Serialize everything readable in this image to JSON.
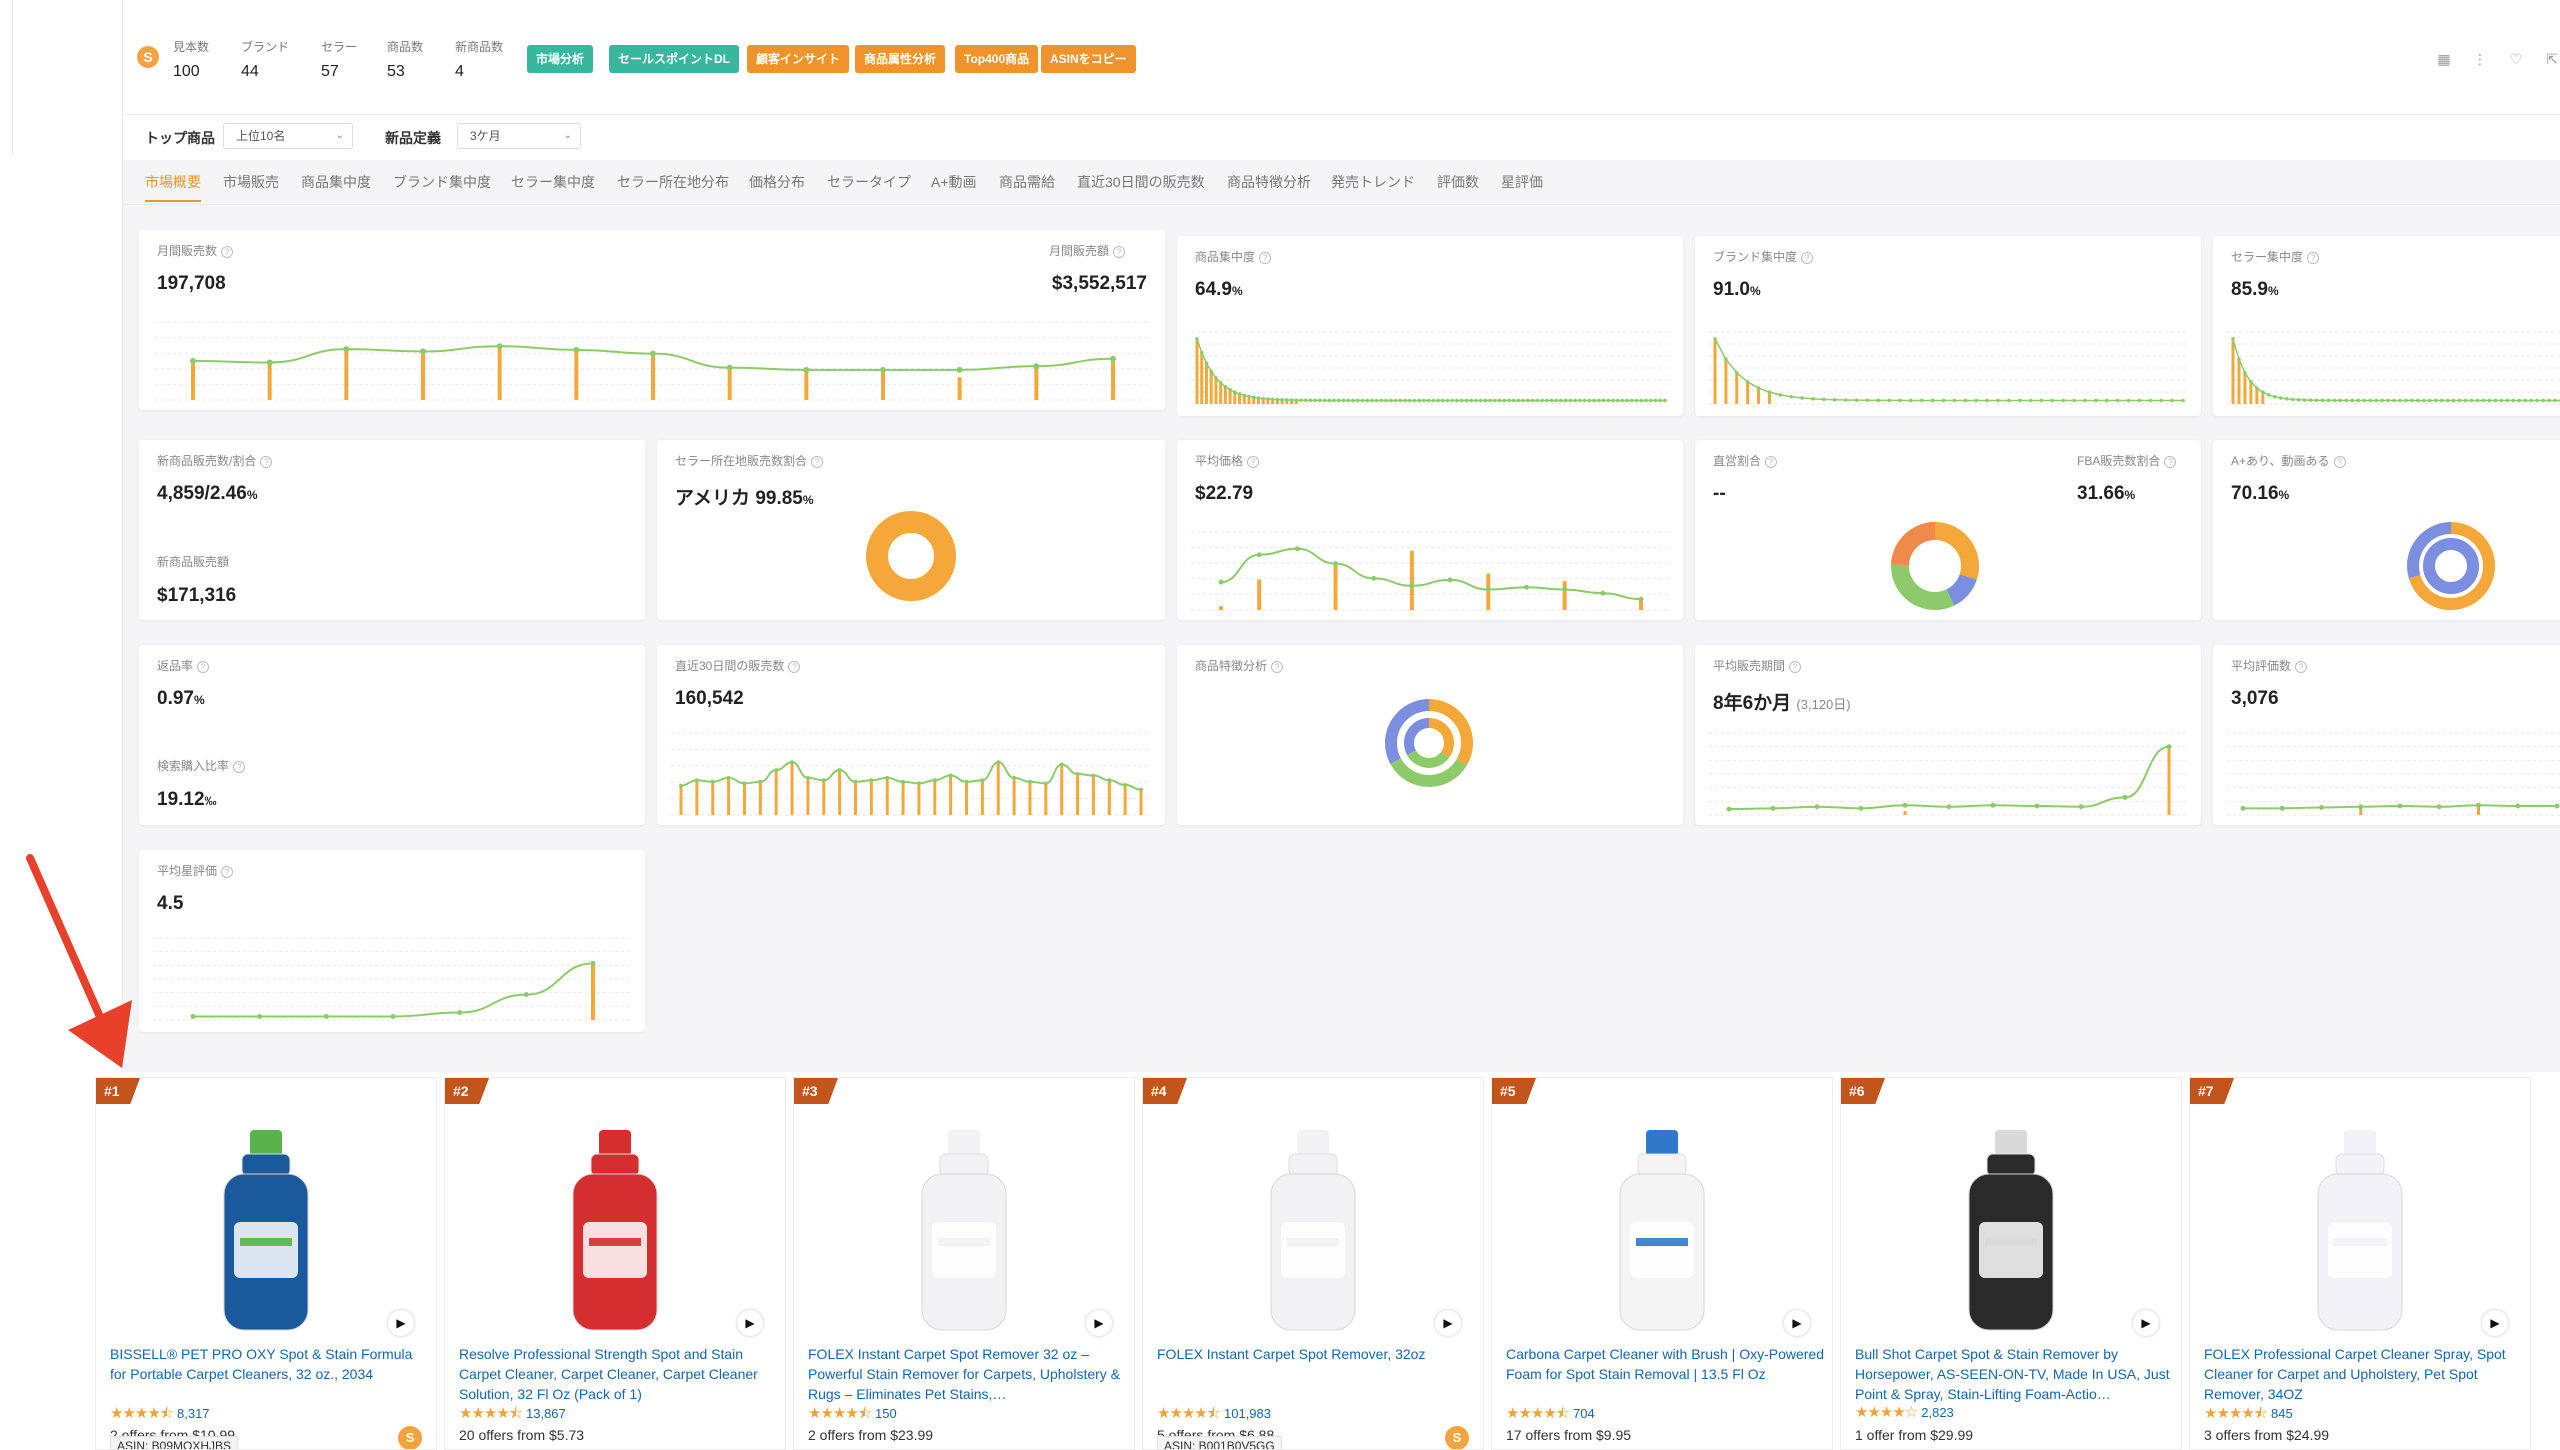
{
  "toolbar": {
    "logo_glyph": "S",
    "stats": [
      {
        "label": "見本数",
        "value": "100"
      },
      {
        "label": "ブランド",
        "value": "44"
      },
      {
        "label": "セラー",
        "value": "57"
      },
      {
        "label": "商品数",
        "value": "53"
      },
      {
        "label": "新商品数",
        "value": "4"
      }
    ],
    "chips": [
      "市場分析",
      "セールスポイントDL",
      "顧客インサイト",
      "商品属性分析",
      "Top400商品",
      "ASINをコピー"
    ],
    "icons": [
      "grid-icon",
      "more-icon",
      "heart-icon",
      "export-icon"
    ],
    "icon_glyphs": [
      "▦",
      "⋮",
      "♡",
      "⇱"
    ]
  },
  "filters": {
    "top_label": "トップ商品",
    "top_value": "上位10名",
    "new_label": "新品定義",
    "new_value": "3ケ月",
    "chevron": "⌄"
  },
  "tabs": [
    "市場概要",
    "市場販売",
    "商品集中度",
    "ブランド集中度",
    "セラー集中度",
    "セラー所在地分布",
    "価格分布",
    "セラータイプ",
    "A+動画",
    "商品需給",
    "直近30日間の販売数",
    "商品特徴分析",
    "発売トレンド",
    "評価数",
    "星評価"
  ],
  "cards": {
    "monthly_sales_label": "月間販売数",
    "monthly_sales_value": "197,708",
    "monthly_revenue_label": "月間販売額",
    "monthly_revenue_value": "$3,552,517",
    "product_conc_label": "商品集中度",
    "product_conc_value": "64.9",
    "brand_conc_label": "ブランド集中度",
    "brand_conc_value": "91.0",
    "seller_conc_label": "セラー集中度",
    "seller_conc_value": "85.9",
    "new_sales_label": "新商品販売数/割合",
    "new_sales_value": "4,859/2.46",
    "new_revenue_label": "新商品販売額",
    "new_revenue_value": "$171,316",
    "seller_loc_label": "セラー所在地販売数割合",
    "seller_loc_value": "アメリカ  99.85",
    "avg_price_label": "平均価格",
    "avg_price_value": "$22.79",
    "direct_label": "直営割合",
    "direct_value": "--",
    "fba_label": "FBA販売数割合",
    "fba_value": "31.66",
    "aplus_label": "A+あり、動画ある",
    "aplus_value": "70.16",
    "return_label": "返品率",
    "return_value": "0.97",
    "search_label": "検索購入比率",
    "search_value": "19.12",
    "last30_label": "直近30日間の販売数",
    "last30_value": "160,542",
    "feature_label": "商品特徴分析",
    "period_label": "平均販売期間",
    "period_value": "8年6か月",
    "period_sub": "(3,120日)",
    "reviews_label": "平均評価数",
    "reviews_value": "3,076",
    "rating_label": "平均星評価",
    "rating_value": "4.5",
    "pct": "%",
    "permille": "‰",
    "help_glyph": "?"
  },
  "colors": {
    "accent_orange": "#f0932b",
    "bar_orange": "#f5a83a",
    "line_green": "#8dcb6a",
    "teal": "#39b79e",
    "purple": "#7b8ee0",
    "link_blue": "#1566a8",
    "rank_brown": "#c2551b",
    "arrow_red": "#e8412b"
  },
  "products": [
    {
      "rank": "#1",
      "title": "BISSELL® PET PRO OXY Spot & Stain Formula for Portable Carpet Cleaners, 32 oz., 2034",
      "stars": "★★★★⯪",
      "reviews": "8,317",
      "offers": "2 offers from $10.99",
      "asin": "ASIN: B09MOXHJBS",
      "color": "#1a5a9c",
      "cap": "#59b24a"
    },
    {
      "rank": "#2",
      "title": "Resolve Professional Strength Spot and Stain Carpet Cleaner, Carpet Cleaner, Carpet Cleaner Solution, 32 Fl Oz (Pack of 1)",
      "stars": "★★★★⯪",
      "reviews": "13,867",
      "offers": "20 offers from $5.73",
      "asin": "",
      "color": "#d42e2e",
      "cap": "#d42e2e"
    },
    {
      "rank": "#3",
      "title": "FOLEX Instant Carpet Spot Remover 32 oz – Powerful Stain Remover for Carpets, Upholstery & Rugs – Eliminates Pet Stains,…",
      "stars": "★★★★⯪",
      "reviews": "150",
      "offers": "2 offers from $23.99",
      "asin": "",
      "color": "#f2f2f4",
      "cap": "#f2f2f4"
    },
    {
      "rank": "#4",
      "title": "FOLEX Instant Carpet Spot Remover, 32oz",
      "stars": "★★★★⯪",
      "reviews": "101,983",
      "offers": "5 offers from $6.88",
      "asin": "ASIN: B001B0V5GG",
      "color": "#f2f2f4",
      "cap": "#f2f2f4"
    },
    {
      "rank": "#5",
      "title": "Carbona Carpet Cleaner with Brush | Oxy-Powered Foam for Spot Stain Removal | 13.5 Fl Oz",
      "stars": "★★★★⯪",
      "reviews": "704",
      "offers": "17 offers from $9.95",
      "asin": "",
      "color": "#f4f4f4",
      "cap": "#2f79c8"
    },
    {
      "rank": "#6",
      "title": "Bull Shot Carpet Spot & Stain Remover by Horsepower, AS-SEEN-ON-TV, Made In USA, Just Point & Spray, Stain-Lifting Foam-Actio…",
      "stars": "★★★★☆",
      "reviews": "2,823",
      "offers": "1 offer from $29.99",
      "asin": "",
      "color": "#2a2a2a",
      "cap": "#d9d9d9"
    },
    {
      "rank": "#7",
      "title": "FOLEX Professional Carpet Cleaner Spray, Spot Cleaner for Carpet and Upholstery, Pet Spot Remover, 34OZ",
      "stars": "★★★★⯪",
      "reviews": "845",
      "offers": "3 offers from $24.99",
      "asin": "",
      "color": "#f3f2f7",
      "cap": "#f3f2f7"
    }
  ],
  "play_glyph": "▶"
}
